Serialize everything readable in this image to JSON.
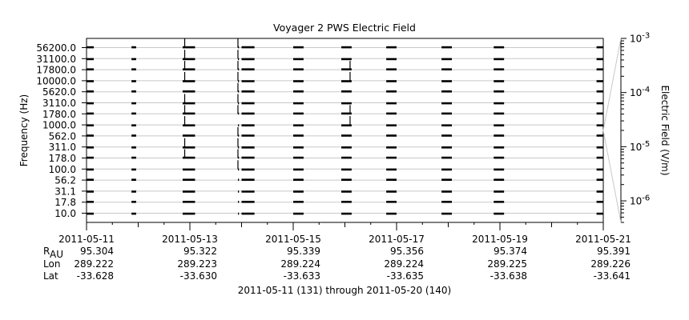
{
  "chart_data": {
    "type": "line",
    "title": "Voyager 2 PWS Electric Field",
    "ylabel": "Frequency (Hz)",
    "channels": [
      "56200.0",
      "31100.0",
      "17800.0",
      "10000.0",
      "5620.0",
      "3110.0",
      "1780.0",
      "1000.0",
      "562.0",
      "311.0",
      "178.0",
      "100.0",
      "56.2",
      "31.1",
      "17.8",
      "10.0"
    ],
    "x_ticks": [
      "2011-05-11",
      "2011-05-13",
      "2011-05-15",
      "2011-05-17",
      "2011-05-19",
      "2011-05-21"
    ],
    "xlim_days": [
      0,
      10
    ],
    "data_segments_days": [
      [
        0.0,
        0.14
      ],
      [
        0.87,
        0.96
      ],
      [
        1.86,
        2.1
      ],
      [
        2.93,
        2.95
      ],
      [
        3.0,
        3.25
      ],
      [
        4.0,
        4.2
      ],
      [
        4.93,
        5.13
      ],
      [
        5.8,
        6.0
      ],
      [
        6.87,
        7.07
      ],
      [
        7.88,
        8.08
      ],
      [
        9.87,
        10.0
      ]
    ],
    "spikes": [
      {
        "day": 1.9,
        "channels": [
          "56200.0",
          "31100.0",
          "17800.0",
          "10000.0",
          "3110.0",
          "1780.0",
          "1000.0",
          "311.0",
          "178.0"
        ]
      },
      {
        "day": 2.93,
        "channels": [
          "56200.0",
          "31100.0",
          "17800.0",
          "10000.0",
          "5620.0",
          "3110.0",
          "1780.0",
          "562.0",
          "311.0",
          "178.0",
          "100.0"
        ]
      },
      {
        "day": 5.1,
        "channels": [
          "17800.0",
          "10000.0",
          "1780.0",
          "1000.0"
        ]
      }
    ],
    "colorbar": {
      "label": "Electric Field (V/m)",
      "scale": "log",
      "range": [
        4e-07,
        0.001
      ],
      "ticks": [
        {
          "base": "10",
          "exp": "-3",
          "value": 0.001
        },
        {
          "base": "10",
          "exp": "-4",
          "value": 0.0001
        },
        {
          "base": "10",
          "exp": "-5",
          "value": 1e-05
        },
        {
          "base": "10",
          "exp": "-6",
          "value": 1e-06
        }
      ]
    },
    "ephemeris": {
      "rows": [
        {
          "label": "R",
          "sub": "AU",
          "values": [
            "95.304",
            "95.322",
            "95.339",
            "95.356",
            "95.374",
            "95.391"
          ]
        },
        {
          "label": "Lon",
          "sub": "",
          "values": [
            "289.222",
            "289.223",
            "289.224",
            "289.224",
            "289.225",
            "289.226"
          ]
        },
        {
          "label": "Lat",
          "sub": "",
          "values": [
            "-33.628",
            "-33.630",
            "-33.633",
            "-33.635",
            "-33.638",
            "-33.641"
          ]
        }
      ]
    },
    "footer": "2011-05-11 (131) through 2011-05-20 (140)"
  }
}
